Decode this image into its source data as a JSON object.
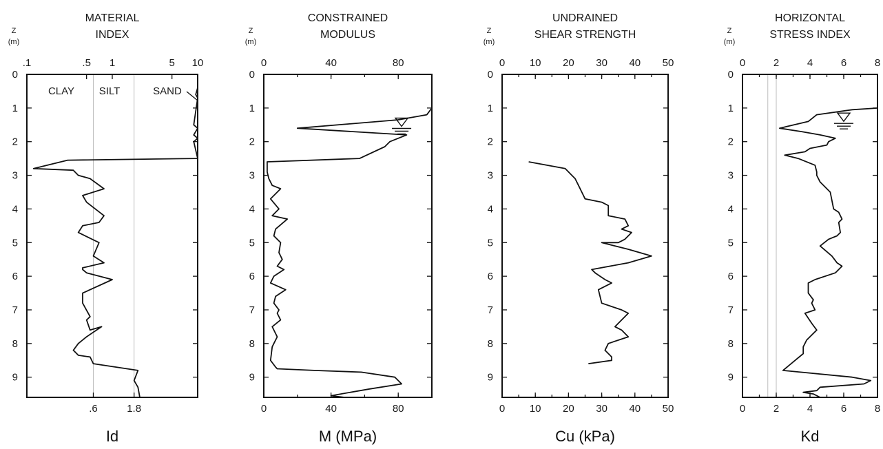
{
  "chart_data": [
    {
      "type": "line",
      "orientation": "depth-profile",
      "title_lines": [
        "MATERIAL",
        "INDEX"
      ],
      "xlabel": "Id",
      "ylabel_lines": [
        "Z",
        "(m)"
      ],
      "xscale": "log",
      "xlim": [
        0.1,
        10
      ],
      "ylim": [
        0,
        9.6
      ],
      "x_ticks_top": [
        0.1,
        0.5,
        1,
        5,
        10
      ],
      "x_tick_labels_top": [
        ".1",
        ".5",
        "1",
        "5",
        "10"
      ],
      "x_ticks_bottom": [
        0.6,
        1.8
      ],
      "x_tick_labels_bottom": [
        ".6",
        "1.8"
      ],
      "ref_lines_x": [
        0.6,
        1.8
      ],
      "annotations": [
        "CLAY",
        "SILT",
        "SAND"
      ],
      "water_table_z": null,
      "series": [
        {
          "x": [
            10,
            9.5,
            10,
            9.0,
            10,
            9.0,
            10,
            9.0,
            10,
            0.3,
            0.12,
            0.35,
            0.4,
            0.55,
            0.8,
            0.45,
            0.5,
            0.8,
            0.7,
            0.45,
            0.4,
            0.7,
            0.6,
            0.8,
            0.45,
            0.45,
            0.5,
            1.0,
            0.45,
            0.45,
            0.55,
            0.5,
            0.55,
            0.75,
            0.5,
            0.4,
            0.35,
            0.4,
            0.55,
            0.6,
            2.0,
            1.8,
            2.0,
            2.1
          ],
          "z": [
            0.4,
            0.6,
            0.7,
            1.5,
            1.6,
            1.8,
            1.9,
            2.0,
            2.5,
            2.55,
            2.8,
            2.85,
            3.0,
            3.1,
            3.4,
            3.6,
            3.8,
            4.2,
            4.4,
            4.5,
            4.7,
            5.0,
            5.4,
            5.6,
            5.75,
            5.8,
            5.9,
            6.1,
            6.5,
            6.8,
            7.2,
            7.3,
            7.6,
            7.5,
            7.8,
            8.0,
            8.2,
            8.35,
            8.4,
            8.6,
            8.8,
            9.1,
            9.3,
            9.6
          ]
        }
      ]
    },
    {
      "type": "line",
      "orientation": "depth-profile",
      "title_lines": [
        "CONSTRAINED",
        "MODULUS"
      ],
      "xlabel": "M (MPa)",
      "ylabel_lines": [
        "Z",
        "(m)"
      ],
      "xscale": "linear",
      "xlim": [
        0,
        100
      ],
      "ylim": [
        0,
        9.6
      ],
      "x_ticks_top": [
        0,
        40,
        80
      ],
      "x_tick_labels_top": [
        "0",
        "40",
        "80"
      ],
      "x_ticks_bottom": [
        0,
        40,
        80
      ],
      "x_tick_labels_bottom": [
        "0",
        "40",
        "80"
      ],
      "ref_lines_x": [],
      "annotations": [],
      "water_table_z": 1.3,
      "water_table_x": 82,
      "series": [
        {
          "x": [
            100,
            97,
            80,
            20,
            85,
            75,
            72,
            57,
            2,
            2,
            3,
            5,
            10,
            4,
            9,
            5,
            14,
            7,
            6,
            10,
            9,
            11,
            8,
            12,
            6,
            4,
            13,
            7,
            6,
            9,
            8,
            10,
            5,
            8,
            6,
            5,
            4,
            7,
            8,
            30,
            58,
            78,
            82,
            63,
            40,
            48
          ],
          "z": [
            1.0,
            1.2,
            1.35,
            1.6,
            1.8,
            2.0,
            2.15,
            2.5,
            2.6,
            2.9,
            3.1,
            3.3,
            3.4,
            3.7,
            4.0,
            4.2,
            4.3,
            4.6,
            4.8,
            5.0,
            5.3,
            5.5,
            5.7,
            5.8,
            6.0,
            6.2,
            6.4,
            6.6,
            6.8,
            7.0,
            7.1,
            7.3,
            7.5,
            7.8,
            8.0,
            8.1,
            8.5,
            8.7,
            8.75,
            8.8,
            8.85,
            9.0,
            9.2,
            9.35,
            9.55,
            9.6
          ]
        }
      ]
    },
    {
      "type": "line",
      "orientation": "depth-profile",
      "title_lines": [
        "UNDRAINED",
        "SHEAR STRENGTH"
      ],
      "xlabel": "Cu (kPa)",
      "ylabel_lines": [
        "Z",
        "(m)"
      ],
      "xscale": "linear",
      "xlim": [
        0,
        50
      ],
      "ylim": [
        0,
        9.6
      ],
      "x_ticks_top": [
        0,
        10,
        20,
        30,
        40,
        50
      ],
      "x_tick_labels_top": [
        "0",
        "10",
        "20",
        "30",
        "40",
        "50"
      ],
      "x_ticks_bottom": [
        0,
        10,
        20,
        30,
        40,
        50
      ],
      "x_tick_labels_bottom": [
        "0",
        "10",
        "20",
        "30",
        "40",
        "50"
      ],
      "ref_lines_x": [],
      "annotations": [],
      "water_table_z": null,
      "series": [
        {
          "x": [
            8,
            19,
            22,
            23,
            24,
            25,
            30,
            32,
            32,
            37,
            38,
            36,
            39,
            37,
            35,
            30,
            38,
            45,
            38,
            27,
            28,
            31,
            33,
            31,
            29,
            30,
            33,
            36,
            38,
            35,
            34,
            36,
            38,
            32,
            31,
            33,
            33,
            26
          ],
          "z": [
            2.6,
            2.8,
            3.1,
            3.3,
            3.5,
            3.7,
            3.8,
            3.9,
            4.2,
            4.3,
            4.5,
            4.6,
            4.7,
            4.9,
            5.0,
            5.0,
            5.2,
            5.4,
            5.6,
            5.8,
            5.9,
            6.1,
            6.2,
            6.3,
            6.4,
            6.8,
            6.9,
            7.0,
            7.1,
            7.4,
            7.5,
            7.6,
            7.8,
            8.0,
            8.2,
            8.4,
            8.5,
            8.6
          ]
        }
      ]
    },
    {
      "type": "line",
      "orientation": "depth-profile",
      "title_lines": [
        "HORIZONTAL",
        "STRESS INDEX"
      ],
      "xlabel": "Kd",
      "ylabel_lines": [
        "Z",
        "(m)"
      ],
      "xscale": "linear",
      "xlim": [
        0,
        8
      ],
      "ylim": [
        0,
        9.6
      ],
      "x_ticks_top": [
        0,
        2,
        4,
        6,
        8
      ],
      "x_tick_labels_top": [
        "0",
        "2",
        "4",
        "6",
        "8"
      ],
      "x_ticks_bottom": [
        0,
        2,
        4,
        6,
        8
      ],
      "x_tick_labels_bottom": [
        "0",
        "2",
        "4",
        "6",
        "8"
      ],
      "ref_lines_x": [
        1.5,
        2.0
      ],
      "annotations": [],
      "water_table_z": 1.15,
      "water_table_x": 6.0,
      "series": [
        {
          "x": [
            8,
            6.5,
            4.4,
            3.9,
            2.2,
            3.5,
            4.6,
            5.5,
            5.1,
            5.0,
            4.0,
            3.7,
            2.5,
            3.3,
            4.3,
            4.4,
            4.4,
            4.6,
            5.2,
            5.4,
            5.7,
            5.9,
            5.7,
            5.8,
            5.6,
            5.1,
            4.6,
            5.3,
            5.6,
            5.9,
            5.5,
            4.3,
            3.9,
            3.9,
            4.2,
            4.1,
            4.3,
            3.7,
            4.1,
            4.4,
            3.8,
            3.6,
            3.6,
            2.4,
            6.5,
            7.6,
            7.2,
            4.6,
            4.4,
            3.6,
            4.2,
            4.6
          ],
          "z": [
            1.0,
            1.05,
            1.2,
            1.4,
            1.6,
            1.7,
            1.8,
            1.9,
            2.0,
            2.1,
            2.2,
            2.3,
            2.4,
            2.5,
            2.7,
            2.9,
            3.0,
            3.2,
            3.5,
            4.0,
            4.1,
            4.3,
            4.4,
            4.7,
            4.8,
            4.9,
            5.1,
            5.4,
            5.6,
            5.7,
            5.9,
            6.1,
            6.2,
            6.5,
            6.7,
            6.8,
            7.0,
            7.1,
            7.4,
            7.6,
            7.9,
            8.1,
            8.3,
            8.8,
            9.0,
            9.1,
            9.2,
            9.3,
            9.4,
            9.45,
            9.5,
            9.6
          ]
        }
      ]
    }
  ],
  "y_tick_labels": [
    "0",
    "1",
    "2",
    "3",
    "4",
    "5",
    "6",
    "7",
    "8",
    "9"
  ]
}
